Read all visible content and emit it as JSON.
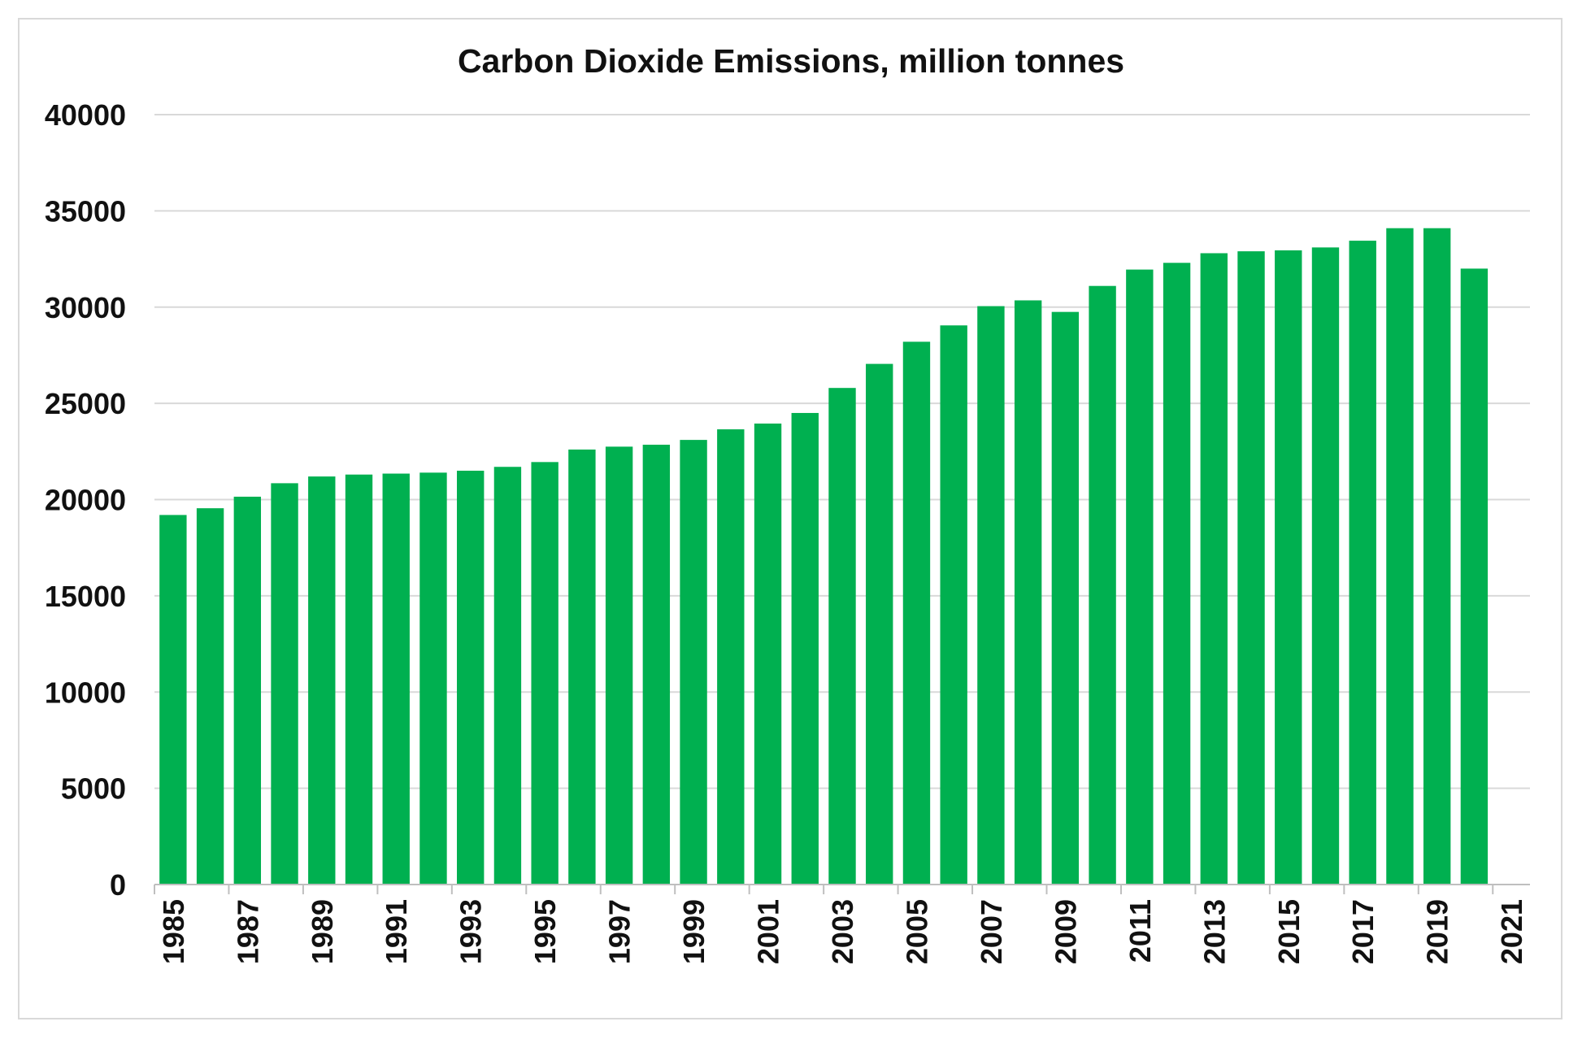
{
  "chart_data": {
    "type": "bar",
    "title": "Carbon Dioxide Emissions, million tonnes",
    "xlabel": "",
    "ylabel": "",
    "ylim": [
      0,
      40000
    ],
    "y_ticks": [
      0,
      5000,
      10000,
      15000,
      20000,
      25000,
      30000,
      35000,
      40000
    ],
    "x_tick_labels": [
      "1985",
      "1987",
      "1989",
      "1991",
      "1993",
      "1995",
      "1997",
      "1999",
      "2001",
      "2003",
      "2005",
      "2007",
      "2009",
      "2011",
      "2013",
      "2015",
      "2017",
      "2019",
      "2021"
    ],
    "grid": true,
    "legend": "none",
    "bar_color": "#00b050",
    "categories": [
      "1985",
      "1986",
      "1987",
      "1988",
      "1989",
      "1990",
      "1991",
      "1992",
      "1993",
      "1994",
      "1995",
      "1996",
      "1997",
      "1998",
      "1999",
      "2000",
      "2001",
      "2002",
      "2003",
      "2004",
      "2005",
      "2006",
      "2007",
      "2008",
      "2009",
      "2010",
      "2011",
      "2012",
      "2013",
      "2014",
      "2015",
      "2016",
      "2017",
      "2018",
      "2019",
      "2020"
    ],
    "values": [
      19200,
      19550,
      20150,
      20850,
      21200,
      21300,
      21350,
      21400,
      21500,
      21700,
      21950,
      22600,
      22750,
      22850,
      23100,
      23650,
      23950,
      24500,
      25800,
      27050,
      28200,
      29050,
      30050,
      30350,
      29750,
      31100,
      31950,
      32300,
      32800,
      32900,
      32950,
      33100,
      33450,
      34100,
      34100,
      32000
    ]
  }
}
